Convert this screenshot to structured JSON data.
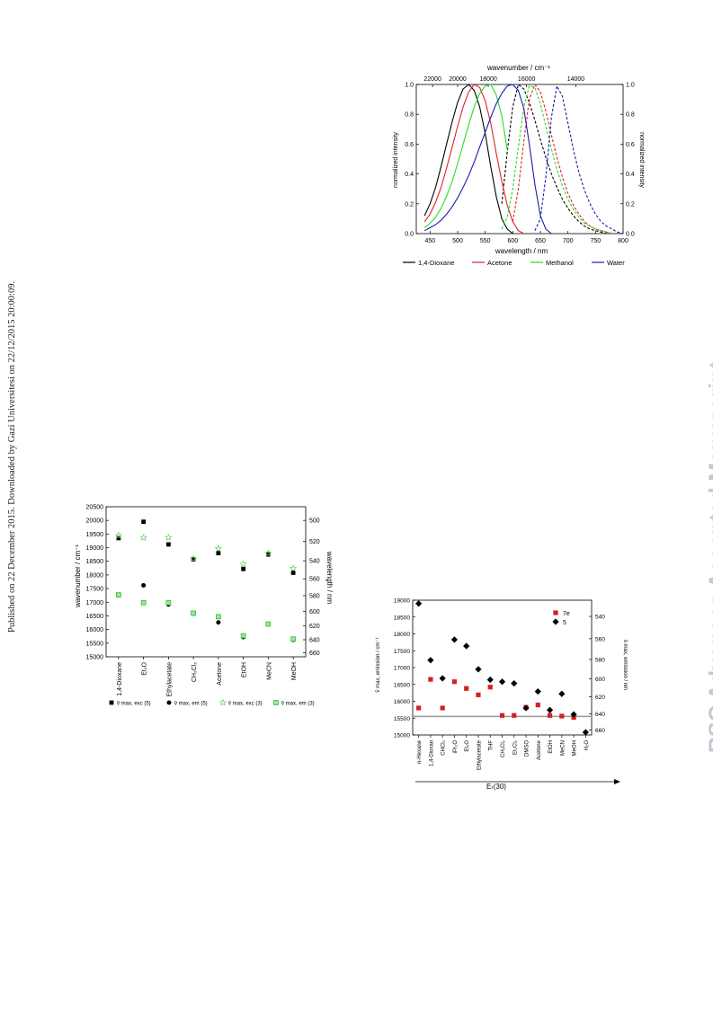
{
  "side_note": "Published on 22 December 2015. Downloaded by Gazi Universitesi on 22/12/2015 20:00:09.",
  "watermark": "RSC Advances Accepted Manuscript",
  "spectra_chart": {
    "top_axis_label": "wavenumber / cm⁻¹",
    "bottom_axis_label": "wavelength / nm",
    "left_axis_label": "normalized intensity",
    "right_axis_label": "normalized intensity",
    "top_ticks": [
      "22000",
      "20000",
      "18000",
      "16000",
      "14000"
    ],
    "bottom_ticks": [
      "450",
      "500",
      "550",
      "600",
      "650",
      "700",
      "750",
      "800"
    ],
    "left_ticks": [
      "0.0",
      "0.2",
      "0.4",
      "0.6",
      "0.8",
      "1.0"
    ],
    "right_ticks": [
      "0.0",
      "0.2",
      "0.4",
      "0.6",
      "0.8",
      "1.0"
    ],
    "legend": [
      "1,4-Dioxane",
      "Acetone",
      "Methanol",
      "Water"
    ],
    "colors": [
      "#000000",
      "#e0202a",
      "#22dd22",
      "#1a1aaa"
    ]
  },
  "solvato_chart": {
    "left_axis_label": "wavenumber / cm⁻¹",
    "right_axis_label": "wavelength / nm",
    "left_ticks": [
      "20500",
      "20000",
      "19500",
      "19000",
      "18500",
      "18000",
      "17500",
      "17000",
      "16500",
      "16000",
      "15500",
      "15000"
    ],
    "right_ticks": [
      "500",
      "520",
      "540",
      "560",
      "580",
      "600",
      "620",
      "640",
      "660"
    ],
    "categories": [
      "1,4-Dioxane",
      "Et₂O",
      "Ethylacetate",
      "CH₂Cl₂",
      "Acetone",
      "EtOH",
      "MeCN",
      "MeOH"
    ],
    "legend": [
      "ṽ max, exc (5)",
      "ṽ max, em (5)",
      "ṽ max, exc (3)",
      "ṽ max, em (3)"
    ]
  },
  "et30_chart": {
    "left_axis_label": "ṽ max, emission / cm⁻¹",
    "right_axis_label": "λ max, emission / nm",
    "left_ticks": [
      "19000",
      "18500",
      "18000",
      "17500",
      "17000",
      "16500",
      "16000",
      "15500",
      "15000"
    ],
    "right_ticks": [
      "540",
      "560",
      "580",
      "600",
      "620",
      "640",
      "660"
    ],
    "categories": [
      "n-Hexane",
      "1,4-Dioxan",
      "CHCl₃",
      "iPr₂O",
      "Et₂O",
      "Ethylacetate",
      "THF",
      "CH₂Cl₂",
      "Et₂Cl₂",
      "DMSO",
      "Acetone",
      "EtOH",
      "MeCN",
      "MeOH",
      "H₂O"
    ],
    "legend": [
      "7e",
      "5"
    ],
    "xlabel": "Eₜ(30)"
  },
  "chart_data": [
    {
      "type": "line",
      "x": [
        440,
        450,
        460,
        470,
        480,
        490,
        500,
        510,
        520,
        530,
        540,
        550,
        560,
        570,
        580,
        590,
        600,
        610,
        620,
        630,
        640,
        650,
        660,
        670,
        680,
        690,
        700,
        710,
        720,
        730,
        740,
        750,
        760,
        770,
        780,
        790,
        800
      ],
      "xlabel": "wavelength / nm",
      "ylabel": "normalized intensity",
      "xlim": [
        425,
        800
      ],
      "ylim": [
        0,
        1
      ],
      "series": [
        {
          "name": "1,4-Dioxane",
          "values": [
            0.12,
            0.2,
            0.31,
            0.45,
            0.6,
            0.75,
            0.88,
            0.97,
            1.0,
            0.96,
            0.85,
            0.67,
            0.45,
            0.25,
            0.1,
            0.03,
            0.0,
            null,
            null,
            null,
            null,
            null,
            null,
            null,
            null,
            null,
            null,
            null,
            null,
            null,
            null,
            null,
            null,
            null,
            null,
            null,
            null
          ]
        },
        {
          "name": "1,4-Dioxane",
          "values": [
            null,
            null,
            null,
            null,
            null,
            null,
            null,
            null,
            null,
            null,
            null,
            null,
            null,
            null,
            0.2,
            0.55,
            0.85,
            1.0,
            0.97,
            0.88,
            0.76,
            0.63,
            0.51,
            0.4,
            0.31,
            0.23,
            0.17,
            0.12,
            0.08,
            0.05,
            0.03,
            0.02,
            0.01,
            0.0,
            null,
            null,
            null
          ]
        },
        {
          "name": "Acetone",
          "values": [
            0.08,
            0.13,
            0.21,
            0.31,
            0.44,
            0.58,
            0.72,
            0.85,
            0.95,
            1.0,
            0.98,
            0.89,
            0.74,
            0.54,
            0.35,
            0.19,
            0.08,
            0.02,
            0.0,
            null,
            null,
            null,
            null,
            null,
            null,
            null,
            null,
            null,
            null,
            null,
            null,
            null,
            null,
            null,
            null,
            null,
            null
          ]
        },
        {
          "name": "Acetone",
          "values": [
            null,
            null,
            null,
            null,
            null,
            null,
            null,
            null,
            null,
            null,
            null,
            null,
            null,
            null,
            null,
            null,
            0.08,
            0.3,
            0.62,
            0.9,
            1.0,
            0.95,
            0.82,
            0.66,
            0.51,
            0.38,
            0.27,
            0.19,
            0.13,
            0.08,
            0.05,
            0.03,
            0.02,
            0.01,
            0.0,
            null,
            null
          ]
        },
        {
          "name": "Methanol",
          "values": [
            0.04,
            0.07,
            0.11,
            0.17,
            0.25,
            0.35,
            0.47,
            0.6,
            0.73,
            0.85,
            0.94,
            0.99,
            1.0,
            0.93,
            0.79,
            0.56,
            null,
            null,
            null,
            null,
            null,
            null,
            null,
            null,
            null,
            null,
            null,
            null,
            null,
            null,
            null,
            null,
            null,
            null,
            null,
            null,
            null
          ]
        },
        {
          "name": "Methanol",
          "values": [
            null,
            null,
            null,
            null,
            null,
            null,
            null,
            null,
            null,
            null,
            null,
            null,
            null,
            null,
            0.03,
            0.11,
            0.3,
            0.58,
            0.85,
            0.99,
            0.98,
            0.87,
            0.72,
            0.57,
            0.43,
            0.32,
            0.23,
            0.16,
            0.11,
            0.07,
            0.05,
            0.03,
            0.02,
            0.01,
            0.0,
            null,
            null
          ]
        },
        {
          "name": "Water",
          "values": [
            0.02,
            0.04,
            0.06,
            0.09,
            0.13,
            0.18,
            0.24,
            0.31,
            0.39,
            0.48,
            0.58,
            0.68,
            0.78,
            0.87,
            0.94,
            0.99,
            1.0,
            0.96,
            0.84,
            0.6,
            0.33,
            0.12,
            0.03,
            0.0,
            null,
            null,
            null,
            null,
            null,
            null,
            null,
            null,
            null,
            null,
            null,
            null,
            null
          ]
        },
        {
          "name": "Water",
          "values": [
            null,
            null,
            null,
            null,
            null,
            null,
            null,
            null,
            null,
            null,
            null,
            null,
            null,
            null,
            null,
            null,
            null,
            null,
            null,
            null,
            0.02,
            0.1,
            0.38,
            0.78,
            0.99,
            0.92,
            0.74,
            0.56,
            0.41,
            0.29,
            0.2,
            0.13,
            0.08,
            0.05,
            0.03,
            0.01,
            0.0
          ]
        }
      ],
      "styles": [
        "solid",
        "dashed",
        "solid",
        "dashed",
        "solid",
        "dashed",
        "solid",
        "dashed"
      ],
      "colors": [
        "#000000",
        "#000000",
        "#e0202a",
        "#e0202a",
        "#22dd22",
        "#22dd22",
        "#1a1aaa",
        "#1a1aaa"
      ]
    },
    {
      "type": "scatter",
      "categories": [
        "1,4-Dioxane",
        "Et₂O",
        "Ethylacetate",
        "CH₂Cl₂",
        "Acetone",
        "EtOH",
        "MeCN",
        "MeOH"
      ],
      "ylabel": "wavenumber / cm⁻¹",
      "ylim": [
        15000,
        20500
      ],
      "series": [
        {
          "name": "ṽ max, exc (5)",
          "values": [
            19350,
            19950,
            19120,
            18570,
            18800,
            18220,
            18750,
            18080
          ],
          "marker": "square",
          "color": "#000000"
        },
        {
          "name": "ṽ max, em (5)",
          "values": [
            17250,
            17620,
            16920,
            16580,
            16260,
            15720,
            16200,
            15620
          ],
          "marker": "circle",
          "color": "#000000"
        },
        {
          "name": "ṽ max, exc (3)",
          "values": [
            19450,
            19370,
            19370,
            18600,
            18970,
            18400,
            18800,
            18240
          ],
          "marker": "star",
          "color": "#5ad05a"
        },
        {
          "name": "ṽ max, em (3)",
          "values": [
            17270,
            16980,
            16980,
            16600,
            16470,
            15770,
            16200,
            15650
          ],
          "marker": "square-open",
          "color": "#22bb22"
        }
      ]
    },
    {
      "type": "scatter",
      "categories": [
        "n-Hexane",
        "1,4-Dioxan",
        "CHCl₃",
        "iPr₂O",
        "Et₂O",
        "Ethylacetate",
        "THF",
        "CH₂Cl₂",
        "Et₂Cl₂",
        "DMSO",
        "Acetone",
        "EtOH",
        "MeCN",
        "MeOH",
        "H₂O"
      ],
      "ylabel": "ṽ max, emission / cm⁻¹",
      "xlabel": "Eₜ(30)",
      "ylim": [
        15000,
        19000
      ],
      "series": [
        {
          "name": "7e",
          "values": [
            15800,
            16650,
            15800,
            16580,
            16380,
            16190,
            16420,
            15580,
            15580,
            15820,
            15890,
            15580,
            15560,
            15520,
            null
          ],
          "marker": "square",
          "color": "#d42020"
        },
        {
          "name": "5",
          "values": [
            18900,
            17220,
            16680,
            17830,
            17640,
            16950,
            16640,
            16580,
            16530,
            15800,
            16290,
            15740,
            16220,
            15610,
            15080
          ],
          "marker": "diamond",
          "color": "#000000"
        }
      ]
    }
  ]
}
